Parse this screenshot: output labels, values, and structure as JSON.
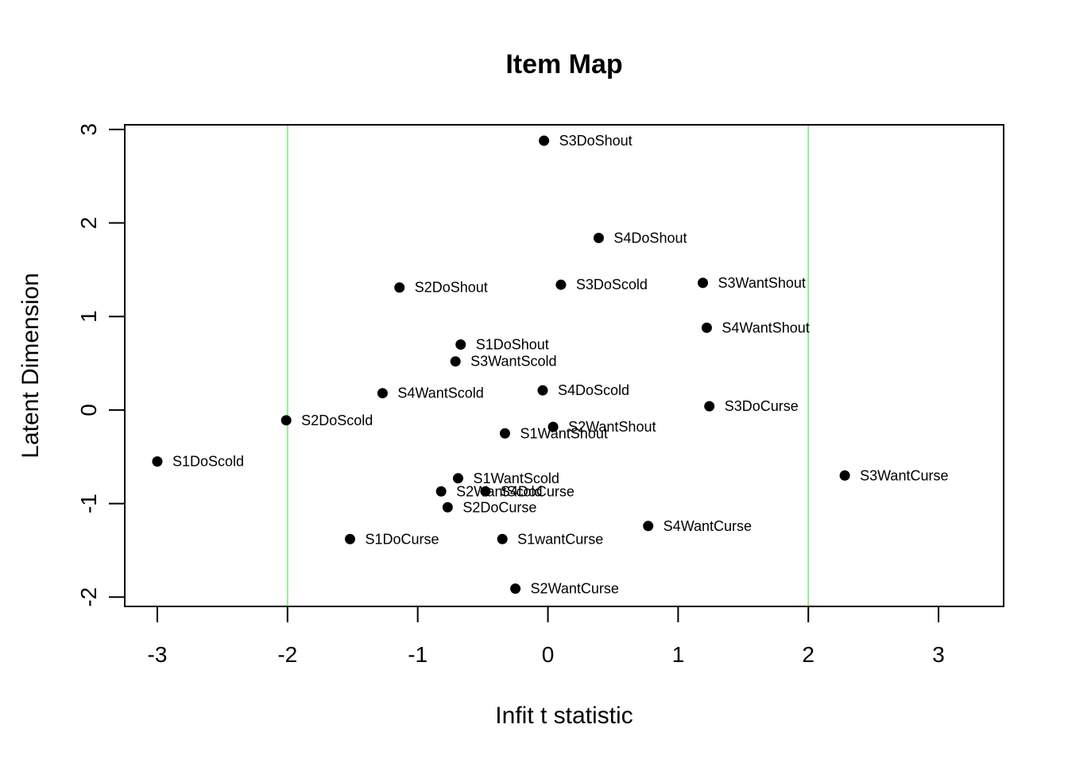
{
  "chart_data": {
    "type": "scatter",
    "title": "Item Map",
    "xlabel": "Infit t statistic",
    "ylabel": "Latent Dimension",
    "xlim": [
      -3.25,
      3.5
    ],
    "ylim": [
      -2.1,
      3.05
    ],
    "xticks": [
      -3,
      -2,
      -1,
      0,
      1,
      2,
      3
    ],
    "yticks": [
      -2,
      -1,
      0,
      1,
      2,
      3
    ],
    "reference_lines_x": [
      -2,
      2
    ],
    "reference_line_color": "#90EE90",
    "point_color": "#000000",
    "grid": false,
    "points": [
      {
        "label": "S3DoShout",
        "x": -0.03,
        "y": 2.88
      },
      {
        "label": "S4DoShout",
        "x": 0.39,
        "y": 1.84
      },
      {
        "label": "S2DoShout",
        "x": -1.14,
        "y": 1.31
      },
      {
        "label": "S3DoScold",
        "x": 0.1,
        "y": 1.34
      },
      {
        "label": "S3WantShout",
        "x": 1.19,
        "y": 1.36
      },
      {
        "label": "S4WantShout",
        "x": 1.22,
        "y": 0.88
      },
      {
        "label": "S1DoShout",
        "x": -0.67,
        "y": 0.7
      },
      {
        "label": "S3WantScold",
        "x": -0.71,
        "y": 0.52
      },
      {
        "label": "S4WantScold",
        "x": -1.27,
        "y": 0.18
      },
      {
        "label": "S4DoScold",
        "x": -0.04,
        "y": 0.21
      },
      {
        "label": "S3DoCurse",
        "x": 1.24,
        "y": 0.04
      },
      {
        "label": "S2DoScold",
        "x": -2.01,
        "y": -0.11
      },
      {
        "label": "S2WantShout",
        "x": 0.04,
        "y": -0.18
      },
      {
        "label": "S1WantShout",
        "x": -0.33,
        "y": -0.25
      },
      {
        "label": "S1DoScold",
        "x": -3.0,
        "y": -0.55
      },
      {
        "label": "S3WantCurse",
        "x": 2.28,
        "y": -0.7
      },
      {
        "label": "S1WantScold",
        "x": -0.69,
        "y": -0.73
      },
      {
        "label": "S2WantScold",
        "x": -0.82,
        "y": -0.87
      },
      {
        "label": "S4DoCurse",
        "x": -0.48,
        "y": -0.87
      },
      {
        "label": "S2DoCurse",
        "x": -0.77,
        "y": -1.04
      },
      {
        "label": "S4WantCurse",
        "x": 0.77,
        "y": -1.24
      },
      {
        "label": "S1DoCurse",
        "x": -1.52,
        "y": -1.38
      },
      {
        "label": "S1wantCurse",
        "x": -0.35,
        "y": -1.38
      },
      {
        "label": "S2WantCurse",
        "x": -0.25,
        "y": -1.91
      }
    ]
  }
}
